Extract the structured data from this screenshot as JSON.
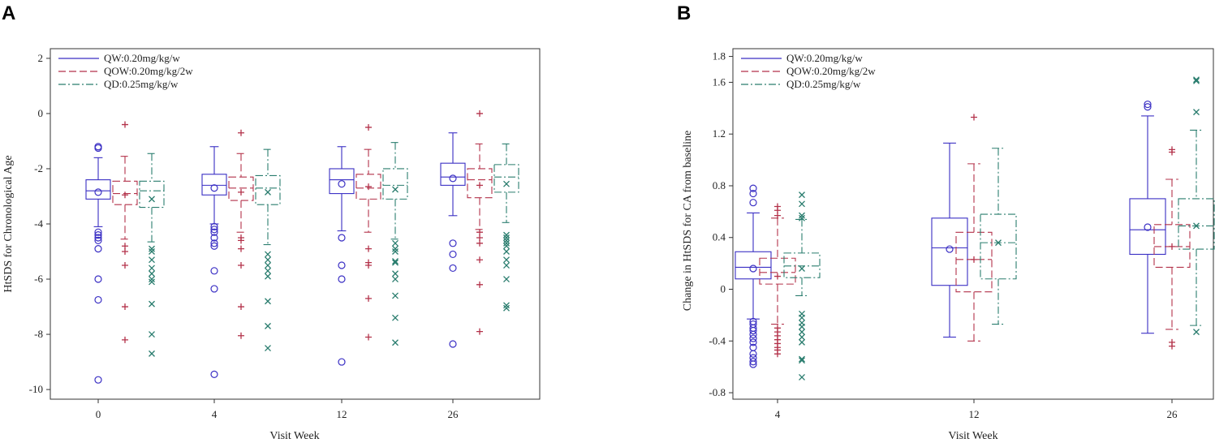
{
  "colors": {
    "QW": "#3a2fc4",
    "QOW": "#b3324a",
    "QD": "#2a7d6e"
  },
  "chart_data": [
    {
      "panel": "A",
      "type": "box",
      "xlabel": "Visit Week",
      "ylabel": "HtSDS for Chronological Age",
      "ylim": [
        -10.35,
        2.35
      ],
      "yticks": [
        2,
        0,
        -2,
        -4,
        -6,
        -8,
        -10
      ],
      "ytick_labels": [
        "2",
        "0",
        "-2",
        "-4",
        "-6",
        "-8",
        "-10"
      ],
      "categories": [
        "0",
        "4",
        "12",
        "26"
      ],
      "legend": [
        "QW:0.20mg/kg/w",
        "QOW:0.20mg/kg/2w",
        "QD:0.25mg/kg/w"
      ],
      "series": [
        {
          "name": "QW:0.20mg/kg/w",
          "key": "QW",
          "marker": "circle",
          "boxes": [
            {
              "low": -4.1,
              "q1": -3.1,
              "median": -2.8,
              "q3": -2.4,
              "high": -1.6,
              "mean": -2.85,
              "outliers": [
                -1.2,
                -1.25,
                -4.3,
                -4.4,
                -4.5,
                -4.6,
                -4.9,
                -6.0,
                -6.75,
                -9.65
              ]
            },
            {
              "low": -4.0,
              "q1": -2.95,
              "median": -2.6,
              "q3": -2.2,
              "high": -1.2,
              "mean": -2.7,
              "outliers": [
                -4.1,
                -4.2,
                -4.3,
                -4.5,
                -4.7,
                -4.8,
                -5.7,
                -6.35,
                -9.45
              ]
            },
            {
              "low": -4.25,
              "q1": -2.9,
              "median": -2.4,
              "q3": -2.0,
              "high": -1.2,
              "mean": -2.55,
              "outliers": [
                -4.5,
                -5.5,
                -6.0,
                -9.0
              ]
            },
            {
              "low": -3.7,
              "q1": -2.6,
              "median": -2.3,
              "q3": -1.8,
              "high": -0.7,
              "mean": -2.35,
              "outliers": [
                -4.7,
                -5.1,
                -5.6,
                -8.35
              ]
            }
          ]
        },
        {
          "name": "QOW:0.20mg/kg/2w",
          "key": "QOW",
          "marker": "plus",
          "boxes": [
            {
              "low": -4.55,
              "q1": -3.3,
              "median": -2.9,
              "q3": -2.45,
              "high": -1.55,
              "mean": -2.95,
              "outliers": [
                -0.4,
                -4.8,
                -5.0,
                -5.5,
                -7.0,
                -8.2
              ]
            },
            {
              "low": -4.3,
              "q1": -3.15,
              "median": -2.7,
              "q3": -2.3,
              "high": -1.45,
              "mean": -2.85,
              "outliers": [
                -0.7,
                -4.5,
                -4.6,
                -4.9,
                -5.5,
                -7.0,
                -8.05
              ]
            },
            {
              "low": -4.3,
              "q1": -3.1,
              "median": -2.7,
              "q3": -2.2,
              "high": -1.3,
              "mean": -2.65,
              "outliers": [
                -0.5,
                -4.9,
                -5.4,
                -5.5,
                -6.7,
                -8.1
              ]
            },
            {
              "low": -4.2,
              "q1": -3.05,
              "median": -2.4,
              "q3": -2.0,
              "high": -1.1,
              "mean": -2.6,
              "outliers": [
                0.0,
                -4.3,
                -4.5,
                -4.7,
                -5.3,
                -6.2,
                -7.9
              ]
            }
          ]
        },
        {
          "name": "QD:0.25mg/kg/w",
          "key": "QD",
          "marker": "x",
          "boxes": [
            {
              "low": -4.65,
              "q1": -3.4,
              "median": -2.8,
              "q3": -2.45,
              "high": -1.45,
              "mean": -3.1,
              "outliers": [
                -4.9,
                -5.0,
                -5.3,
                -5.6,
                -5.8,
                -6.0,
                -6.1,
                -6.9,
                -8.0,
                -8.7
              ]
            },
            {
              "low": -4.75,
              "q1": -3.3,
              "median": -2.7,
              "q3": -2.25,
              "high": -1.3,
              "mean": -2.85,
              "outliers": [
                -5.1,
                -5.3,
                -5.5,
                -5.7,
                -5.9,
                -6.8,
                -7.7,
                -8.5
              ]
            },
            {
              "low": -4.55,
              "q1": -3.1,
              "median": -2.6,
              "q3": -2.0,
              "high": -1.05,
              "mean": -2.75,
              "outliers": [
                -4.7,
                -4.9,
                -5.0,
                -5.35,
                -5.4,
                -5.8,
                -6.0,
                -6.6,
                -7.4,
                -8.3
              ]
            },
            {
              "low": -3.95,
              "q1": -2.85,
              "median": -2.3,
              "q3": -1.85,
              "high": -1.1,
              "mean": -2.55,
              "outliers": [
                -4.4,
                -4.5,
                -4.6,
                -4.7,
                -4.8,
                -5.0,
                -5.3,
                -5.5,
                -6.0,
                -6.95,
                -7.05
              ]
            }
          ]
        }
      ]
    },
    {
      "panel": "B",
      "type": "box",
      "xlabel": "Visit Week",
      "ylabel": "Change in HtSDS for CA from baseline",
      "ylim": [
        -0.85,
        1.86
      ],
      "yticks": [
        1.8,
        1.6,
        1.2,
        0.8,
        0.4,
        0,
        -0.4,
        -0.8
      ],
      "ytick_labels": [
        "1.8",
        "1.6",
        "1.2",
        "0.8",
        "0.4",
        "0",
        "-0.4",
        "-0.8"
      ],
      "categories": [
        "4",
        "12",
        "26"
      ],
      "legend": [
        "QW:0.20mg/kg/w",
        "QOW:0.20mg/kg/2w",
        "QD:0.25mg/kg/w"
      ],
      "series": [
        {
          "name": "QW:0.20mg/kg/w",
          "key": "QW",
          "marker": "circle",
          "boxes": [
            {
              "low": -0.23,
              "q1": 0.08,
              "median": 0.17,
              "q3": 0.29,
              "high": 0.59,
              "mean": 0.16,
              "outliers": [
                0.78,
                0.74,
                0.67,
                -0.25,
                -0.27,
                -0.3,
                -0.32,
                -0.35,
                -0.38,
                -0.41,
                -0.45,
                -0.5,
                -0.53,
                -0.56,
                -0.58
              ]
            },
            {
              "low": -0.37,
              "q1": 0.03,
              "median": 0.32,
              "q3": 0.55,
              "high": 1.13,
              "mean": 0.31,
              "outliers": []
            },
            {
              "low": -0.34,
              "q1": 0.27,
              "median": 0.46,
              "q3": 0.7,
              "high": 1.34,
              "mean": 0.48,
              "outliers": [
                1.41,
                1.43
              ]
            }
          ]
        },
        {
          "name": "QOW:0.20mg/kg/2w",
          "key": "QOW",
          "marker": "plus",
          "boxes": [
            {
              "low": -0.27,
              "q1": 0.04,
              "median": 0.13,
              "q3": 0.24,
              "high": 0.55,
              "mean": 0.1,
              "outliers": [
                0.64,
                0.61,
                0.57,
                -0.3,
                -0.33,
                -0.36,
                -0.39,
                -0.42,
                -0.45,
                -0.47,
                -0.5
              ]
            },
            {
              "low": -0.4,
              "q1": -0.02,
              "median": 0.23,
              "q3": 0.44,
              "high": 0.97,
              "mean": 0.23,
              "outliers": [
                1.33
              ]
            },
            {
              "low": -0.31,
              "q1": 0.17,
              "median": 0.33,
              "q3": 0.5,
              "high": 0.85,
              "mean": 0.33,
              "outliers": [
                1.06,
                1.08,
                -0.41,
                -0.44
              ]
            }
          ]
        },
        {
          "name": "QD:0.25mg/kg/w",
          "key": "QD",
          "marker": "x",
          "boxes": [
            {
              "low": -0.05,
              "q1": 0.09,
              "median": 0.18,
              "q3": 0.28,
              "high": 0.54,
              "mean": 0.16,
              "outliers": [
                0.73,
                0.66,
                0.57,
                0.55,
                -0.19,
                -0.22,
                -0.26,
                -0.29,
                -0.33,
                -0.37,
                -0.41,
                -0.54,
                -0.55,
                -0.68
              ]
            },
            {
              "low": -0.27,
              "q1": 0.08,
              "median": 0.36,
              "q3": 0.58,
              "high": 1.09,
              "mean": 0.36,
              "outliers": []
            },
            {
              "low": -0.28,
              "q1": 0.31,
              "median": 0.49,
              "q3": 0.7,
              "high": 1.23,
              "mean": 0.49,
              "outliers": [
                1.37,
                1.61,
                1.62,
                -0.33
              ]
            }
          ]
        }
      ]
    }
  ]
}
